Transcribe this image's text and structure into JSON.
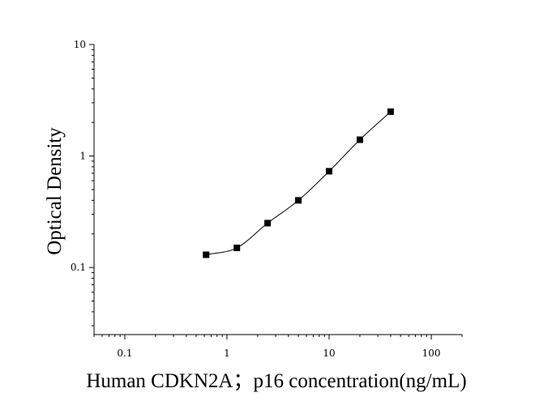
{
  "chart_data": {
    "type": "scatter",
    "title": "",
    "xlabel": "Human CDKN2A；p16 concentration(ng/mL)",
    "ylabel": "Optical Density",
    "x_scale": "log",
    "y_scale": "log",
    "xlim": [
      0.05,
      200
    ],
    "ylim": [
      0.025,
      10
    ],
    "x_ticks": [
      {
        "value": 0.1,
        "label": "0.1"
      },
      {
        "value": 1,
        "label": "1"
      },
      {
        "value": 10,
        "label": "10"
      },
      {
        "value": 100,
        "label": "100"
      }
    ],
    "y_ticks": [
      {
        "value": 0.1,
        "label": "0.1"
      },
      {
        "value": 1,
        "label": "1"
      },
      {
        "value": 10,
        "label": "10"
      }
    ],
    "grid": false,
    "legend": "none",
    "marker": "square",
    "fit_line": true,
    "series": [
      {
        "x": [
          0.625,
          1.25,
          2.5,
          5,
          10,
          20,
          40
        ],
        "y": [
          0.13,
          0.15,
          0.25,
          0.4,
          0.73,
          1.4,
          2.5
        ]
      }
    ],
    "colors": {
      "marker": "#000000",
      "line": "#000000",
      "axis": "#000000"
    }
  }
}
